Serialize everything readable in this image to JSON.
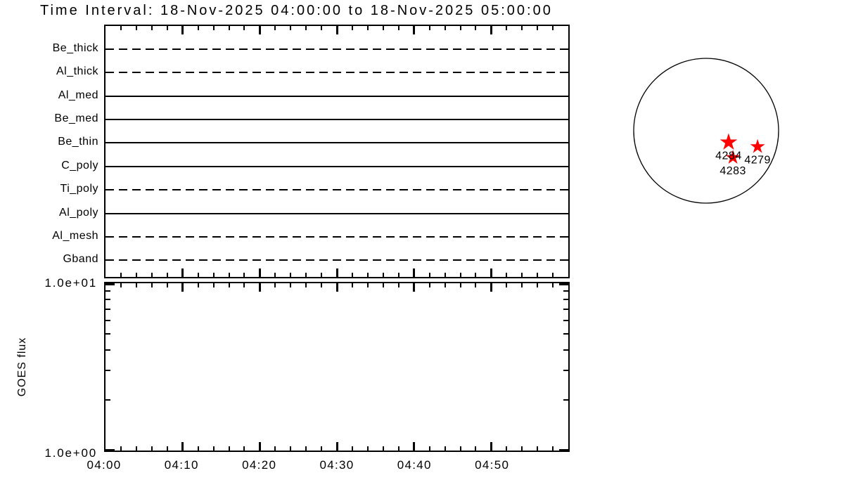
{
  "title": "Time Interval: 18-Nov-2025 04:00:00 to 18-Nov-2025 05:00:00",
  "top_panel": {
    "filters": [
      {
        "label": "Be_thick",
        "style": "dashed"
      },
      {
        "label": "Al_thick",
        "style": "dashed"
      },
      {
        "label": "Al_med",
        "style": "solid"
      },
      {
        "label": "Be_med",
        "style": "solid"
      },
      {
        "label": "Be_thin",
        "style": "solid"
      },
      {
        "label": "C_poly",
        "style": "solid"
      },
      {
        "label": "Ti_poly",
        "style": "dashed"
      },
      {
        "label": "Al_poly",
        "style": "solid"
      },
      {
        "label": "Al_mesh",
        "style": "dashed"
      },
      {
        "label": "Gband",
        "style": "dashed"
      }
    ]
  },
  "bottom_panel": {
    "ylabel": "GOES flux",
    "ytick_top": "1.0e+01",
    "ytick_bottom": "1.0e+00",
    "xtick_labels": [
      "04:00",
      "04:10",
      "04:20",
      "04:30",
      "04:40",
      "04:50"
    ]
  },
  "solar_disk": {
    "marker_color": "#ff0000",
    "regions": [
      {
        "label": "4284",
        "fx": 0.31,
        "fy": 0.16,
        "size": 13
      },
      {
        "label": "4279",
        "fx": 0.71,
        "fy": 0.22,
        "size": 11
      },
      {
        "label": "4283",
        "fx": 0.37,
        "fy": 0.37,
        "size": 11
      }
    ]
  },
  "chart_data": [
    {
      "type": "line",
      "title": "Time Interval: 18-Nov-2025 04:00:00 to 18-Nov-2025 05:00:00",
      "description": "XRT filter availability timeline; each filter drawn as a horizontal line spanning the full interval",
      "x_range": [
        "04:00",
        "05:00"
      ],
      "x_major_ticks": [
        "04:00",
        "04:10",
        "04:20",
        "04:30",
        "04:40",
        "04:50"
      ],
      "x_minor_tick_minutes": 2,
      "categories": [
        "Be_thick",
        "Al_thick",
        "Al_med",
        "Be_med",
        "Be_thin",
        "C_poly",
        "Ti_poly",
        "Al_poly",
        "Al_mesh",
        "Gband"
      ],
      "series": [
        {
          "name": "Be_thick",
          "linestyle": "dashed",
          "start": "04:00",
          "end": "05:00"
        },
        {
          "name": "Al_thick",
          "linestyle": "dashed",
          "start": "04:00",
          "end": "05:00"
        },
        {
          "name": "Al_med",
          "linestyle": "solid",
          "start": "04:00",
          "end": "05:00"
        },
        {
          "name": "Be_med",
          "linestyle": "solid",
          "start": "04:00",
          "end": "05:00"
        },
        {
          "name": "Be_thin",
          "linestyle": "solid",
          "start": "04:00",
          "end": "05:00"
        },
        {
          "name": "C_poly",
          "linestyle": "solid",
          "start": "04:00",
          "end": "05:00"
        },
        {
          "name": "Ti_poly",
          "linestyle": "dashed",
          "start": "04:00",
          "end": "05:00"
        },
        {
          "name": "Al_poly",
          "linestyle": "solid",
          "start": "04:00",
          "end": "05:00"
        },
        {
          "name": "Al_mesh",
          "linestyle": "dashed",
          "start": "04:00",
          "end": "05:00"
        },
        {
          "name": "Gband",
          "linestyle": "dashed",
          "start": "04:00",
          "end": "05:00"
        }
      ],
      "line_color": "#000000",
      "grid": false,
      "legend": false
    },
    {
      "type": "line",
      "description": "GOES flux panel (no data plotted in this interval)",
      "ylabel": "GOES flux",
      "yscale": "log",
      "ylim": [
        1.0,
        10.0
      ],
      "ytick_labels": [
        "1.0e+00",
        "1.0e+01"
      ],
      "x_range": [
        "04:00",
        "05:00"
      ],
      "x_major_ticks": [
        "04:00",
        "04:10",
        "04:20",
        "04:30",
        "04:40",
        "04:50"
      ],
      "x_minor_tick_minutes": 2,
      "series": [],
      "grid": false,
      "legend": false
    },
    {
      "type": "scatter",
      "description": "Solar disk with NOAA active regions marked by red stars; offsets are fractions of disk radius from disk center (+x right, +y down)",
      "marker": "star",
      "color": "#ff0000",
      "points": [
        {
          "label": "4284",
          "x": 0.31,
          "y": 0.16
        },
        {
          "label": "4279",
          "x": 0.71,
          "y": 0.22
        },
        {
          "label": "4283",
          "x": 0.37,
          "y": 0.37
        }
      ]
    }
  ]
}
